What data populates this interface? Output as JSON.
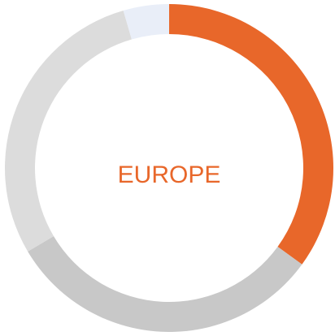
{
  "chart_data": {
    "type": "donut",
    "center_label": "EUROPE",
    "categories": [
      null,
      null,
      null,
      null
    ],
    "values": [
      35,
      31.5,
      29,
      4.5
    ],
    "colors": [
      "#e8672a",
      "#c8c8c8",
      "#dcdcdc",
      "#e9eef8"
    ]
  }
}
